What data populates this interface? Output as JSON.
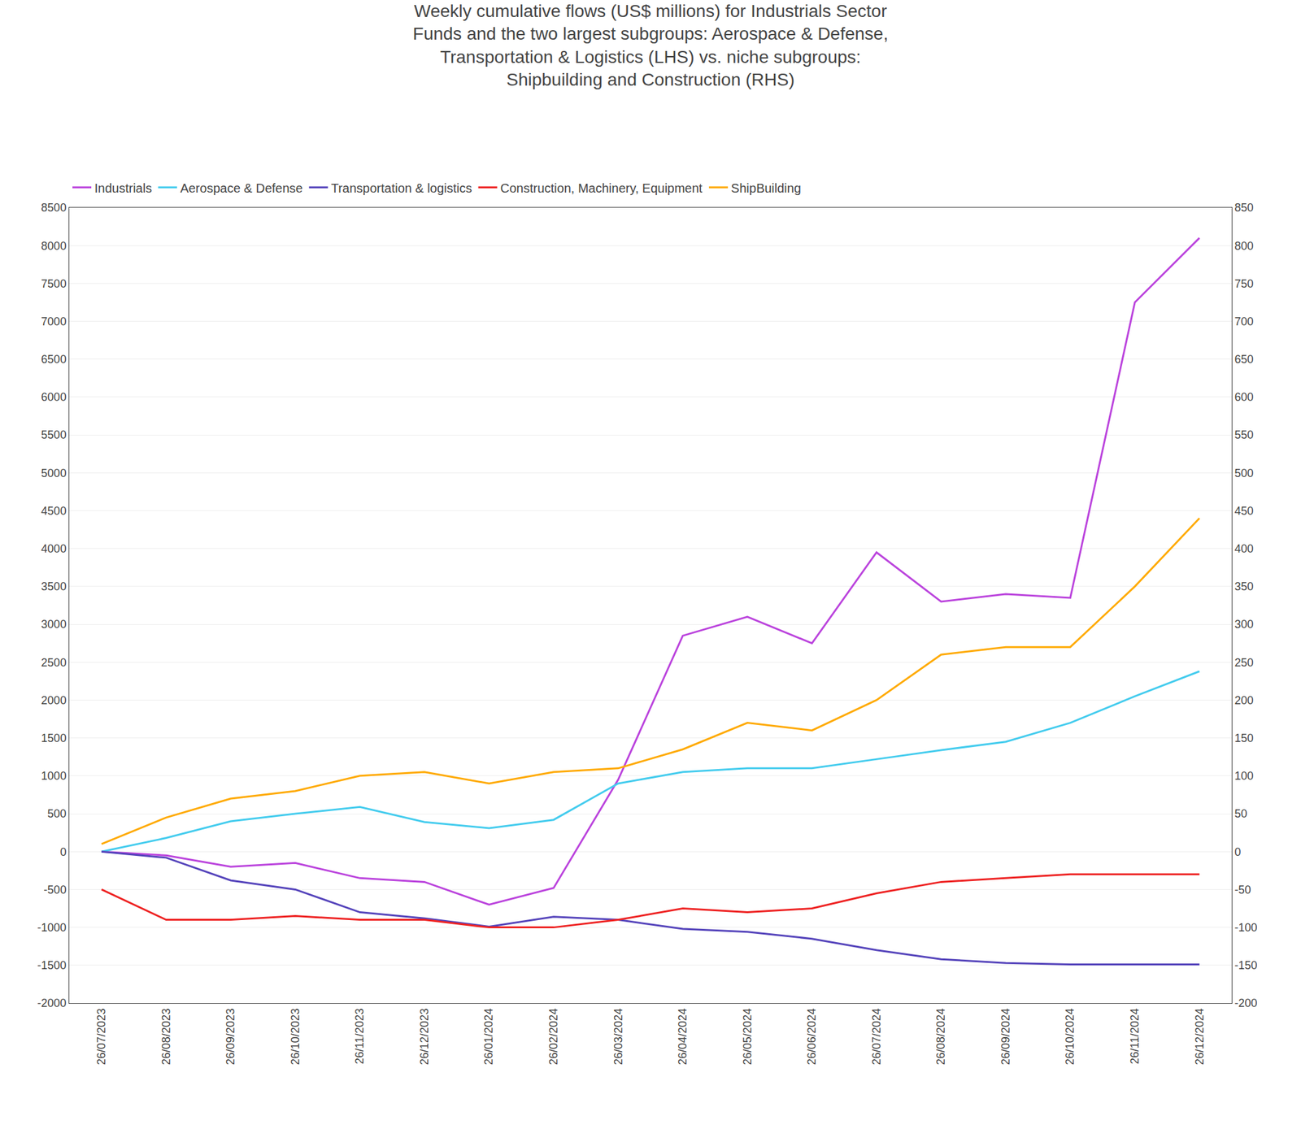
{
  "chart_data": {
    "type": "line",
    "title": "Weekly cumulative flows (US$ millions) for Industrials Sector\nFunds and the two largest subgroups: Aerospace & Defense,\nTransportation & Logistics (LHS) vs. niche subgroups:\nShipbuilding and Construction (RHS)",
    "categories": [
      "26/07/2023",
      "26/08/2023",
      "26/09/2023",
      "26/10/2023",
      "26/11/2023",
      "26/12/2023",
      "26/01/2024",
      "26/02/2024",
      "26/03/2024",
      "26/04/2024",
      "26/05/2024",
      "26/06/2024",
      "26/07/2024",
      "26/08/2024",
      "26/09/2024",
      "26/10/2024",
      "26/11/2024",
      "26/12/2024"
    ],
    "series": [
      {
        "name": "Industrials",
        "color": "#bb44dd",
        "values": [
          0,
          -50,
          -200,
          -150,
          -350,
          -400,
          -700,
          -480,
          950,
          2850,
          3100,
          2750,
          3950,
          3300,
          3400,
          3350,
          7250,
          8100
        ]
      },
      {
        "name": "Aerospace & Defense",
        "color": "#44ccee",
        "values": [
          0,
          180,
          400,
          500,
          590,
          390,
          310,
          420,
          900,
          1050,
          1100,
          1100,
          1220,
          1340,
          1450,
          1700,
          2050,
          2380
        ]
      },
      {
        "name": "Transportation & logistics",
        "color": "#5544bb",
        "values": [
          0,
          -80,
          -380,
          -500,
          -800,
          -880,
          -990,
          -860,
          -900,
          -1020,
          -1060,
          -1150,
          -1300,
          -1420,
          -1470,
          -1490,
          -1490,
          -1490
        ]
      },
      {
        "name": "Construction, Machinery, Equipment",
        "color": "#ee2222",
        "axis": "y2",
        "values": [
          -50,
          -90,
          -90,
          -85,
          -90,
          -90,
          -100,
          -100,
          -90,
          -75,
          -80,
          -75,
          -55,
          -40,
          -35,
          -30,
          -30,
          -30
        ]
      },
      {
        "name": "ShipBuilding",
        "color": "#ffaa00",
        "axis": "y2",
        "values": [
          10,
          45,
          70,
          80,
          100,
          105,
          90,
          105,
          110,
          135,
          170,
          160,
          200,
          260,
          270,
          270,
          350,
          440
        ]
      }
    ],
    "ylim": [
      -2000,
      8500
    ],
    "yticks": [
      -2000,
      -1500,
      -1000,
      -500,
      0,
      500,
      1000,
      1500,
      2000,
      2500,
      3000,
      3500,
      4000,
      4500,
      5000,
      5500,
      6000,
      6500,
      7000,
      7500,
      8000,
      8500
    ],
    "y2lim": [
      -200,
      850
    ],
    "y2ticks": [
      -200,
      -150,
      -100,
      -50,
      0,
      50,
      100,
      150,
      200,
      250,
      300,
      350,
      400,
      450,
      500,
      550,
      600,
      650,
      700,
      750,
      800,
      850
    ],
    "grid": true,
    "legend": "upper left"
  }
}
